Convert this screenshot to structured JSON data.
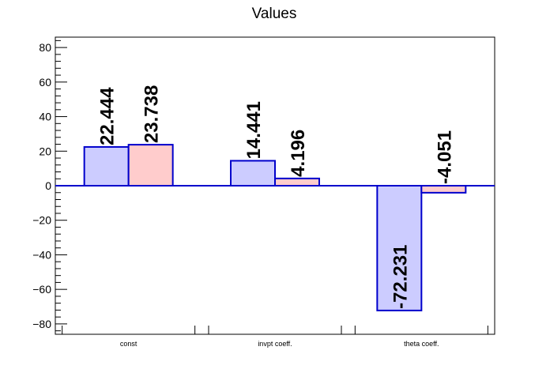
{
  "chart_data": {
    "type": "bar",
    "title": "Values",
    "categories": [
      "const",
      "invpt coeff.",
      "theta coeff."
    ],
    "series": [
      {
        "values": [
          22.444,
          14.441,
          -72.231
        ],
        "color": "#ccccff",
        "edge": "#0000cc"
      },
      {
        "values": [
          23.738,
          4.196,
          -4.051
        ],
        "color": "#ffcccc",
        "edge": "#0000cc"
      }
    ],
    "data_labels": [
      [
        "22.444",
        "14.441",
        "-72.231"
      ],
      [
        "23.738",
        "4.196",
        "-4.051"
      ]
    ],
    "ylim": [
      -86,
      86
    ],
    "yticks": [
      "80",
      "60",
      "40",
      "20",
      "0",
      "−20",
      "−40",
      "−60",
      "−80"
    ],
    "xlabel": "",
    "ylabel": "",
    "grid": false,
    "legend": false,
    "zero_line_color": "#0000cc"
  }
}
